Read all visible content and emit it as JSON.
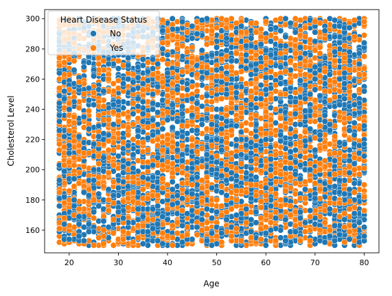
{
  "chart_data": {
    "type": "scatter",
    "xlabel": "Age",
    "ylabel": "Cholesterol Level",
    "xlim": [
      15,
      83
    ],
    "ylim": [
      145,
      306
    ],
    "x_ticks": [
      20,
      30,
      40,
      50,
      60,
      70,
      80
    ],
    "y_ticks": [
      160,
      180,
      200,
      220,
      240,
      260,
      280,
      300
    ],
    "x_domain": [
      18,
      80
    ],
    "y_domain": [
      150,
      300
    ],
    "grid": false,
    "legend": {
      "title": "Heart Disease Status",
      "placement": "top-left",
      "entries": [
        {
          "label": "No",
          "color": "#1f77b4"
        },
        {
          "label": "Yes",
          "color": "#ff7f0e"
        }
      ]
    },
    "series": [
      {
        "name": "No",
        "color": "#1f77b4",
        "approx_count": 3000
      },
      {
        "name": "Yes",
        "color": "#ff7f0e",
        "approx_count": 3000
      }
    ],
    "note_points": "Points are integer ages 18–80 versus cholesterol 150–300, densely filling the full range for both statuses."
  }
}
